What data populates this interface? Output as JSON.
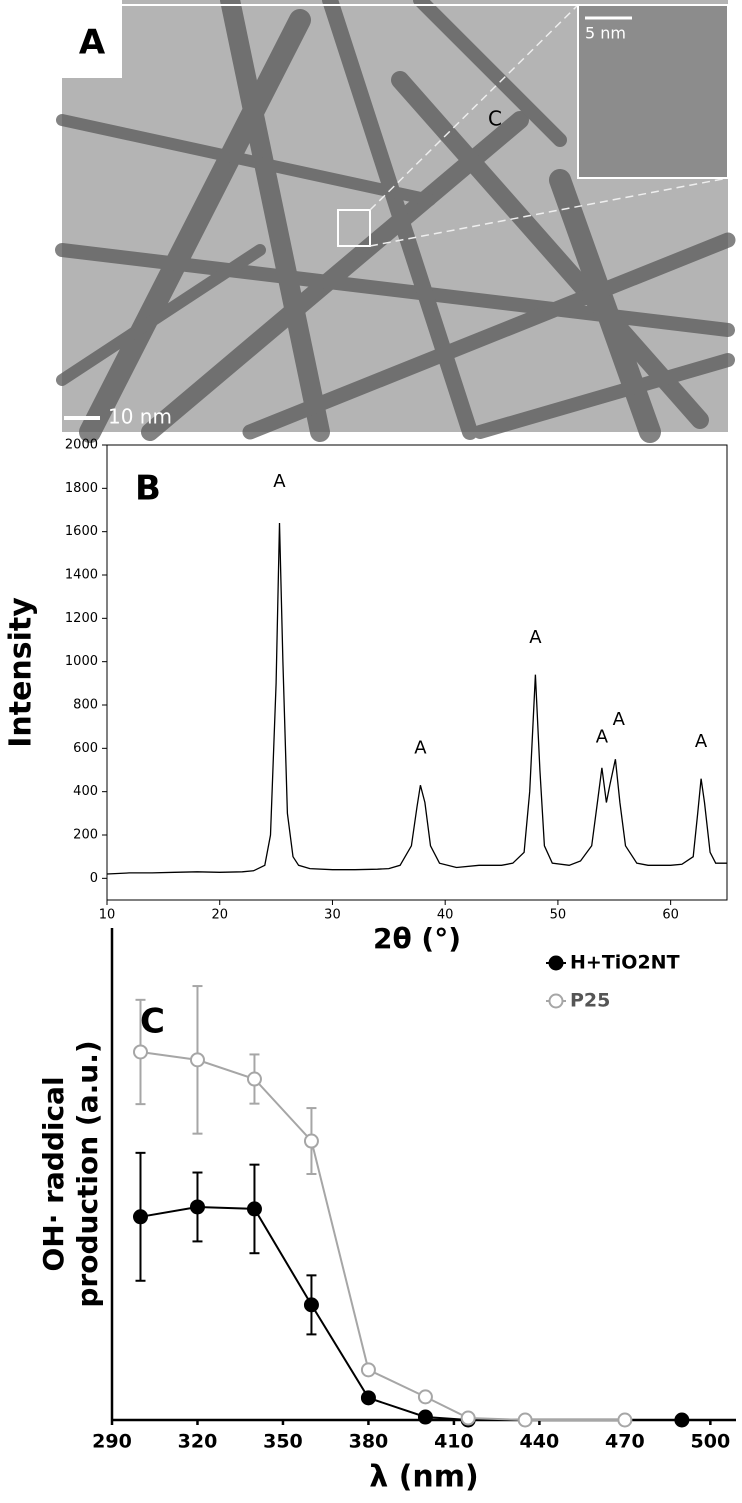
{
  "panel_a": {
    "label": "A",
    "annotations": [
      "C",
      "5 nm",
      "10 nm"
    ]
  },
  "chart_data": [
    {
      "type": "line",
      "panel": "B",
      "xlabel": "2θ (°)",
      "ylabel": "Intensity",
      "xlim": [
        10,
        65
      ],
      "ylim": [
        -100,
        2000
      ],
      "xticks": [
        10,
        20,
        30,
        40,
        50,
        60
      ],
      "yticks": [
        0,
        200,
        400,
        600,
        800,
        1000,
        1200,
        1400,
        1600,
        1800,
        2000
      ],
      "series": [
        {
          "color": "#000000",
          "x": [
            10,
            12,
            14,
            16,
            18,
            20,
            22,
            23,
            24,
            24.5,
            25,
            25.3,
            25.6,
            26,
            26.5,
            27,
            28,
            30,
            32,
            34,
            35,
            36,
            37,
            37.5,
            37.8,
            38.2,
            38.7,
            39.5,
            41,
            43,
            45,
            46,
            47,
            47.5,
            48,
            48.4,
            48.8,
            49.5,
            51,
            52,
            53,
            53.5,
            53.9,
            54.3,
            54.6,
            55.1,
            55.5,
            56,
            57,
            58,
            60,
            61,
            62,
            62.4,
            62.7,
            63,
            63.5,
            64,
            65
          ],
          "values": [
            20,
            25,
            25,
            28,
            30,
            28,
            30,
            35,
            60,
            200,
            900,
            1640,
            1000,
            300,
            100,
            60,
            45,
            40,
            40,
            42,
            45,
            60,
            150,
            330,
            430,
            350,
            150,
            70,
            50,
            60,
            60,
            70,
            120,
            400,
            940,
            500,
            150,
            70,
            60,
            80,
            150,
            350,
            510,
            350,
            430,
            550,
            350,
            150,
            70,
            60,
            60,
            65,
            100,
            300,
            460,
            350,
            120,
            70,
            70
          ]
        }
      ],
      "annotations": [
        {
          "text": "A",
          "x": 25.3,
          "y": 1830
        },
        {
          "text": "A",
          "x": 37.8,
          "y": 600
        },
        {
          "text": "A",
          "x": 48.0,
          "y": 1110
        },
        {
          "text": "A",
          "x": 53.9,
          "y": 650
        },
        {
          "text": "A",
          "x": 55.4,
          "y": 730
        },
        {
          "text": "A",
          "x": 62.7,
          "y": 630
        }
      ]
    },
    {
      "type": "errorline",
      "panel": "C",
      "xlabel": "λ (nm)",
      "ylabel": [
        "OH· raddical",
        "production (a.u.)"
      ],
      "xlim": [
        290,
        509
      ],
      "ylim": [
        0,
        1
      ],
      "xticks": [
        290,
        320,
        350,
        380,
        410,
        440,
        470,
        500
      ],
      "legend": "top-right",
      "series": [
        {
          "name": "H+TiO2NT",
          "color": "#000000",
          "fill": "#000000",
          "x": [
            300,
            320,
            340,
            360,
            380,
            400,
            415,
            490
          ],
          "values": [
            0.413,
            0.433,
            0.429,
            0.234,
            0.045,
            0.006,
            0,
            0
          ],
          "errors": [
            0.13,
            0.07,
            0.09,
            0.06,
            0,
            0,
            0,
            0
          ]
        },
        {
          "name": "P25",
          "color": "#a6a6a6",
          "fill": "#ffffff",
          "x": [
            300,
            320,
            340,
            360,
            380,
            400,
            415,
            435,
            470
          ],
          "values": [
            0.748,
            0.732,
            0.693,
            0.567,
            0.102,
            0.047,
            0.004,
            0,
            0
          ],
          "errors": [
            0.106,
            0.15,
            0.05,
            0.067,
            0,
            0,
            0,
            0,
            0
          ]
        }
      ]
    }
  ]
}
